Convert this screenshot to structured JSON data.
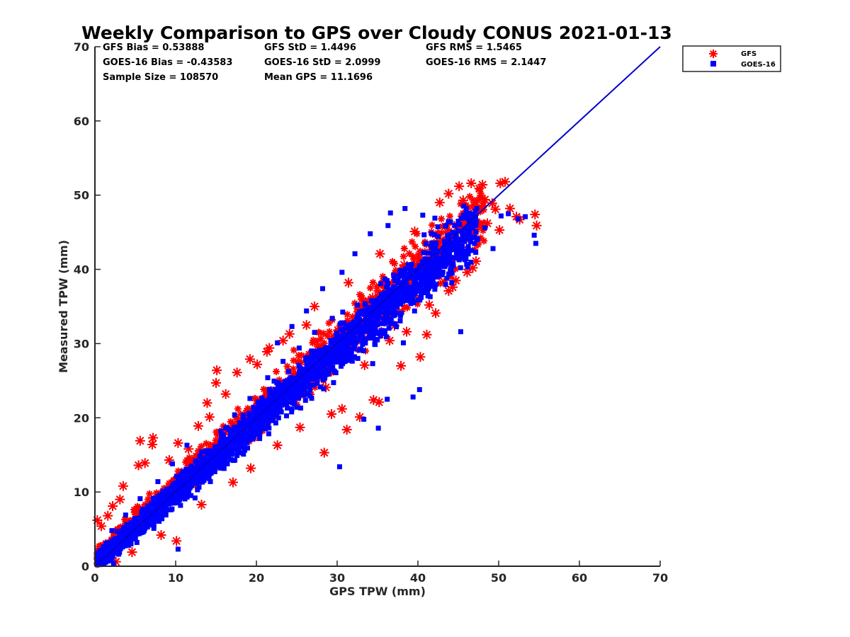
{
  "chart_data": {
    "type": "scatter",
    "title": "Weekly Comparison to GPS over Cloudy CONUS 2021-01-13",
    "xlabel": "GPS TPW (mm)",
    "ylabel": "Measured TPW (mm)",
    "xlim": [
      0,
      70
    ],
    "ylim": [
      0,
      70
    ],
    "xticks": [
      "0",
      "10",
      "20",
      "30",
      "40",
      "50",
      "60",
      "70"
    ],
    "yticks": [
      "0",
      "10",
      "20",
      "30",
      "40",
      "50",
      "60",
      "70"
    ],
    "grid": false,
    "legend_position": "outside-top-right",
    "reference_line": {
      "x": [
        0,
        70
      ],
      "y": [
        0,
        70
      ],
      "color": "#0000cc"
    },
    "stats": {
      "gfs_bias": "GFS Bias = 0.53888",
      "gfs_std": "GFS StD = 1.4496",
      "gfs_rms": "GFS RMS = 1.5465",
      "goes_bias": "GOES-16 Bias = -0.43583",
      "goes_std": "GOES-16 StD = 2.0999",
      "goes_rms": "GOES-16 RMS = 2.1447",
      "sample_size": "Sample Size = 108570",
      "mean_gps": "Mean GPS = 11.1696"
    },
    "series": [
      {
        "name": "GFS",
        "marker": "asterisk",
        "color": "#ff0000",
        "points": [
          [
            0.3,
            6.2
          ],
          [
            0.8,
            5.4
          ],
          [
            1.6,
            6.8
          ],
          [
            2.2,
            8.1
          ],
          [
            3.1,
            9.0
          ],
          [
            3.5,
            10.8
          ],
          [
            2.6,
            0.6
          ],
          [
            1.1,
            0.9
          ],
          [
            5.4,
            13.6
          ],
          [
            5.6,
            16.9
          ],
          [
            7.2,
            17.3
          ],
          [
            7.1,
            16.4
          ],
          [
            6.2,
            13.9
          ],
          [
            10.1,
            3.4
          ],
          [
            10.3,
            16.6
          ],
          [
            12.8,
            18.9
          ],
          [
            13.9,
            22.0
          ],
          [
            14.2,
            20.1
          ],
          [
            15.1,
            26.4
          ],
          [
            15.0,
            24.7
          ],
          [
            17.6,
            26.1
          ],
          [
            19.2,
            27.9
          ],
          [
            21.3,
            28.9
          ],
          [
            21.6,
            29.4
          ],
          [
            24.1,
            31.3
          ],
          [
            26.2,
            32.5
          ],
          [
            28.4,
            15.3
          ],
          [
            28.6,
            24.1
          ],
          [
            29.3,
            20.5
          ],
          [
            30.6,
            21.2
          ],
          [
            31.2,
            18.4
          ],
          [
            32.8,
            20.1
          ],
          [
            34.5,
            22.4
          ],
          [
            35.2,
            22.1
          ],
          [
            36.5,
            30.4
          ],
          [
            37.9,
            27.0
          ],
          [
            38.6,
            31.6
          ],
          [
            40.3,
            28.2
          ],
          [
            41.1,
            31.2
          ],
          [
            42.2,
            34.1
          ],
          [
            42.7,
            49.0
          ],
          [
            43.8,
            37.1
          ],
          [
            44.3,
            37.6
          ],
          [
            44.7,
            38.5
          ],
          [
            46.1,
            39.6
          ],
          [
            46.8,
            40.2
          ],
          [
            47.2,
            41.1
          ],
          [
            48.3,
            49.4
          ],
          [
            49.2,
            48.9
          ],
          [
            49.6,
            48.1
          ],
          [
            45.1,
            51.2
          ],
          [
            46.6,
            51.6
          ],
          [
            48.0,
            51.4
          ],
          [
            50.2,
            51.6
          ],
          [
            50.8,
            51.8
          ],
          [
            51.4,
            48.2
          ],
          [
            52.2,
            47.1
          ],
          [
            52.6,
            46.7
          ],
          [
            54.5,
            47.4
          ],
          [
            54.7,
            45.9
          ],
          [
            43.8,
            50.2
          ],
          [
            45.6,
            49.3
          ],
          [
            47.6,
            50.9
          ],
          [
            9.2,
            14.3
          ],
          [
            11.6,
            15.8
          ],
          [
            16.2,
            23.2
          ],
          [
            20.1,
            27.2
          ],
          [
            23.3,
            30.4
          ],
          [
            27.2,
            35.0
          ],
          [
            31.4,
            38.2
          ],
          [
            35.3,
            42.1
          ],
          [
            39.6,
            45.1
          ],
          [
            25.4,
            18.7
          ],
          [
            22.6,
            16.3
          ],
          [
            19.3,
            13.2
          ],
          [
            17.1,
            11.3
          ],
          [
            13.2,
            8.3
          ],
          [
            8.2,
            4.2
          ],
          [
            4.6,
            1.9
          ],
          [
            33.4,
            27.1
          ],
          [
            37.1,
            32.4
          ],
          [
            41.4,
            35.2
          ],
          [
            44.1,
            43.6
          ],
          [
            46.4,
            44.1
          ],
          [
            48.6,
            46.2
          ],
          [
            50.1,
            45.3
          ],
          [
            26.3,
            26.8
          ],
          [
            30.1,
            31.8
          ],
          [
            34.4,
            36.2
          ],
          [
            38.3,
            40.6
          ],
          [
            18.4,
            19.6
          ],
          [
            12.1,
            12.8
          ]
        ]
      },
      {
        "name": "GOES-16",
        "marker": "square",
        "color": "#0000ff",
        "points": [
          [
            0.4,
            0.3
          ],
          [
            1.2,
            1.8
          ],
          [
            2.3,
            0.4
          ],
          [
            3.4,
            2.6
          ],
          [
            4.3,
            4.1
          ],
          [
            5.2,
            3.2
          ],
          [
            6.4,
            6.6
          ],
          [
            7.3,
            5.1
          ],
          [
            8.6,
            9.4
          ],
          [
            9.4,
            7.6
          ],
          [
            10.3,
            2.3
          ],
          [
            11.3,
            12.7
          ],
          [
            12.4,
            9.2
          ],
          [
            13.2,
            15.4
          ],
          [
            14.3,
            11.4
          ],
          [
            15.6,
            18.2
          ],
          [
            16.4,
            13.8
          ],
          [
            17.3,
            20.4
          ],
          [
            18.4,
            15.1
          ],
          [
            19.2,
            22.6
          ],
          [
            20.4,
            17.2
          ],
          [
            21.4,
            25.4
          ],
          [
            22.4,
            19.3
          ],
          [
            23.3,
            27.6
          ],
          [
            24.4,
            21.2
          ],
          [
            25.3,
            29.4
          ],
          [
            26.4,
            23.2
          ],
          [
            27.2,
            31.5
          ],
          [
            28.3,
            25.1
          ],
          [
            29.4,
            33.4
          ],
          [
            30.3,
            13.4
          ],
          [
            31.2,
            29.6
          ],
          [
            32.5,
            35.2
          ],
          [
            33.3,
            19.8
          ],
          [
            34.4,
            27.3
          ],
          [
            35.1,
            18.6
          ],
          [
            36.2,
            22.5
          ],
          [
            37.3,
            36.2
          ],
          [
            38.2,
            30.1
          ],
          [
            39.4,
            22.8
          ],
          [
            40.2,
            23.8
          ],
          [
            41.3,
            39.5
          ],
          [
            42.4,
            40.3
          ],
          [
            43.3,
            43.8
          ],
          [
            44.2,
            38.2
          ],
          [
            45.3,
            31.6
          ],
          [
            46.2,
            42.4
          ],
          [
            47.4,
            44.1
          ],
          [
            48.3,
            45.6
          ],
          [
            49.3,
            42.8
          ],
          [
            50.3,
            47.2
          ],
          [
            51.2,
            47.5
          ],
          [
            52.4,
            46.8
          ],
          [
            53.3,
            47.1
          ],
          [
            54.4,
            44.6
          ],
          [
            54.6,
            43.5
          ],
          [
            36.6,
            47.6
          ],
          [
            38.4,
            48.2
          ],
          [
            40.6,
            47.3
          ],
          [
            42.1,
            46.9
          ],
          [
            26.2,
            34.4
          ],
          [
            24.4,
            32.3
          ],
          [
            22.6,
            30.1
          ],
          [
            28.2,
            37.4
          ],
          [
            30.6,
            39.6
          ],
          [
            32.2,
            42.1
          ],
          [
            34.1,
            44.8
          ],
          [
            36.3,
            45.9
          ],
          [
            14.6,
            14.4
          ],
          [
            16.4,
            16.2
          ],
          [
            22.3,
            22.1
          ],
          [
            19.5,
            19.5
          ],
          [
            27.3,
            27.6
          ],
          [
            31.4,
            30.8
          ],
          [
            35.2,
            34.6
          ],
          [
            39.4,
            39.1
          ],
          [
            43.2,
            42.8
          ],
          [
            2.1,
            4.8
          ],
          [
            3.8,
            6.9
          ],
          [
            5.6,
            9.1
          ],
          [
            7.8,
            11.4
          ],
          [
            9.6,
            13.8
          ],
          [
            11.4,
            16.3
          ],
          [
            1.4,
            3.1
          ],
          [
            0.9,
            2.2
          ],
          [
            6.1,
            4.8
          ],
          [
            8.3,
            6.4
          ],
          [
            10.6,
            8.2
          ],
          [
            12.7,
            10.3
          ]
        ]
      }
    ]
  }
}
